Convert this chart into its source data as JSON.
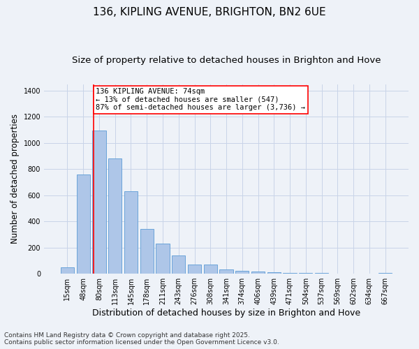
{
  "title": "136, KIPLING AVENUE, BRIGHTON, BN2 6UE",
  "subtitle": "Size of property relative to detached houses in Brighton and Hove",
  "xlabel": "Distribution of detached houses by size in Brighton and Hove",
  "ylabel": "Number of detached properties",
  "categories": [
    "15sqm",
    "48sqm",
    "80sqm",
    "113sqm",
    "145sqm",
    "178sqm",
    "211sqm",
    "243sqm",
    "276sqm",
    "308sqm",
    "341sqm",
    "374sqm",
    "406sqm",
    "439sqm",
    "471sqm",
    "504sqm",
    "537sqm",
    "569sqm",
    "602sqm",
    "634sqm",
    "667sqm"
  ],
  "bar_values": [
    50,
    760,
    1095,
    880,
    630,
    345,
    230,
    140,
    68,
    68,
    35,
    25,
    18,
    10,
    5,
    5,
    8,
    0,
    0,
    0,
    8
  ],
  "bar_color": "#aec6e8",
  "bar_edge_color": "#5b9bd5",
  "grid_color": "#c8d4e8",
  "bg_color": "#eef2f8",
  "annotation_text": "136 KIPLING AVENUE: 74sqm\n← 13% of detached houses are smaller (547)\n87% of semi-detached houses are larger (3,736) →",
  "vline_x": 1.65,
  "annotation_box_facecolor": "white",
  "annotation_box_edgecolor": "red",
  "vline_color": "red",
  "ylim": [
    0,
    1450
  ],
  "footnote": "Contains HM Land Registry data © Crown copyright and database right 2025.\nContains public sector information licensed under the Open Government Licence v3.0.",
  "title_fontsize": 11,
  "subtitle_fontsize": 9.5,
  "xlabel_fontsize": 9,
  "ylabel_fontsize": 8.5,
  "tick_fontsize": 7,
  "annotation_fontsize": 7.5,
  "footnote_fontsize": 6.5
}
